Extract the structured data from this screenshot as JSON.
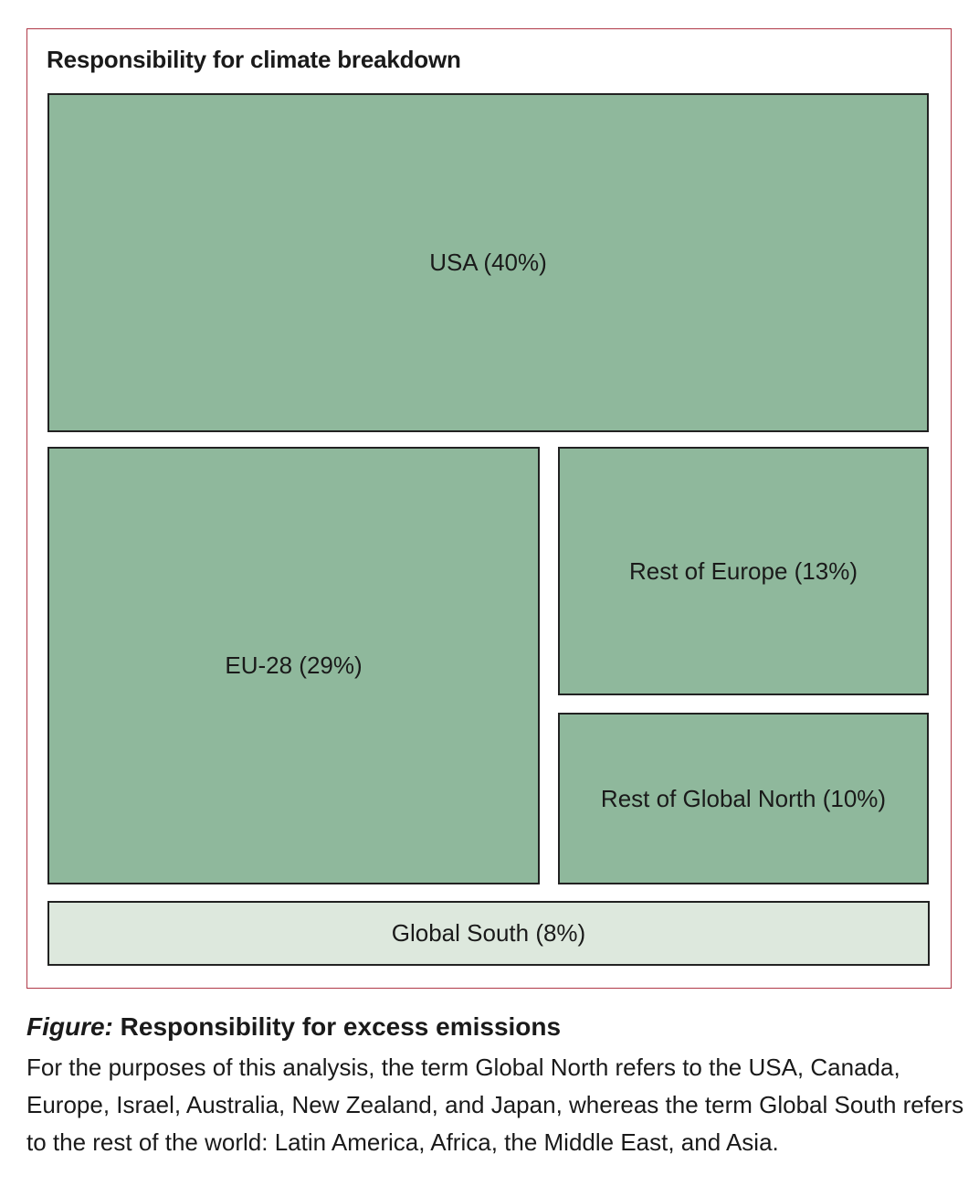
{
  "chart_data": {
    "type": "treemap",
    "title": "Responsibility for climate breakdown",
    "categories": [
      "USA",
      "EU-28",
      "Rest of Europe",
      "Rest of Global North",
      "Global South"
    ],
    "values": [
      40,
      29,
      13,
      10,
      8
    ],
    "unit": "%",
    "labels": {
      "usa": "USA (40%)",
      "eu28": "EU-28 (29%)",
      "rest_europe": "Rest of Europe (13%)",
      "rest_global_north": "Rest of Global North (10%)",
      "global_south": "Global South (8%)"
    },
    "colors": {
      "global_north": "#8fb89c",
      "global_south": "#dde8dd",
      "border": "#222222",
      "frame": "#b03a48"
    }
  },
  "caption": {
    "prefix": "Figure:",
    "title": "Responsibility for excess emissions",
    "text": "For the purposes of this analysis, the term Global North refers to the USA, Canada, Europe, Israel, Australia, New Zealand, and Japan, whereas the term Global South refers to the rest of the world: Latin America, Africa, the Middle East, and Asia."
  }
}
